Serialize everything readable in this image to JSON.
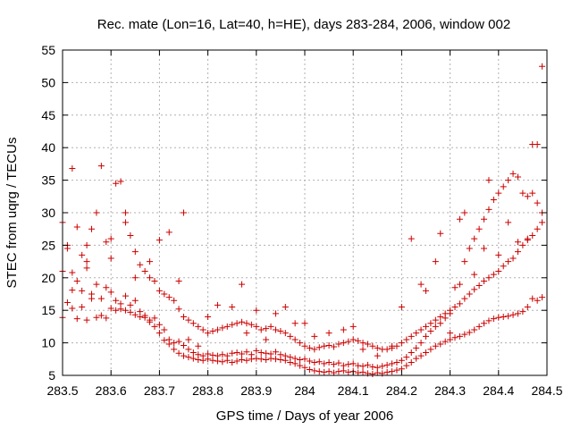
{
  "chart_data": {
    "type": "scatter",
    "title": "Rec. mate (Lon=16, Lat=40, h=HE), days 283-284, 2006, window 002",
    "xlabel": "GPS time / Days of year 2006",
    "ylabel": "STEC from uqrg / TECUs",
    "xlim": [
      283.5,
      284.5
    ],
    "ylim": [
      5,
      55
    ],
    "x_ticks": [
      283.5,
      283.6,
      283.7,
      283.8,
      283.9,
      284.0,
      284.1,
      284.2,
      284.3,
      284.4,
      284.5
    ],
    "x_tick_labels": [
      "283.5",
      "283.6",
      "283.7",
      "283.8",
      "283.9",
      "284",
      "284.1",
      "284.2",
      "284.3",
      "284.4",
      "284.5"
    ],
    "y_ticks": [
      5,
      10,
      15,
      20,
      25,
      30,
      35,
      40,
      45,
      50,
      55
    ],
    "y_tick_labels": [
      "5",
      "10",
      "15",
      "20",
      "25",
      "30",
      "35",
      "40",
      "45",
      "50",
      "55"
    ],
    "grid": true,
    "marker": "plus",
    "color": "#cc0000",
    "points": [
      [
        283.5,
        13.9
      ],
      [
        283.51,
        16.2
      ],
      [
        283.52,
        18.1
      ],
      [
        283.53,
        13.7
      ],
      [
        283.54,
        15.5
      ],
      [
        283.55,
        13.5
      ],
      [
        283.56,
        16.8
      ],
      [
        283.57,
        13.9
      ],
      [
        283.58,
        14.2
      ],
      [
        283.59,
        13.8
      ],
      [
        283.6,
        15.3
      ],
      [
        283.61,
        15.0
      ],
      [
        283.62,
        15.2
      ],
      [
        283.63,
        15.0
      ],
      [
        283.64,
        14.7
      ],
      [
        283.65,
        14.3
      ],
      [
        283.66,
        14.0
      ],
      [
        283.67,
        13.9
      ],
      [
        283.68,
        13.2
      ],
      [
        283.69,
        12.5
      ],
      [
        283.7,
        11.5
      ],
      [
        283.71,
        10.4
      ],
      [
        283.72,
        9.8
      ],
      [
        283.73,
        9.0
      ],
      [
        283.74,
        8.4
      ],
      [
        283.75,
        8.0
      ],
      [
        283.76,
        7.8
      ],
      [
        283.77,
        7.6
      ],
      [
        283.78,
        7.4
      ],
      [
        283.79,
        7.3
      ],
      [
        283.8,
        7.5
      ],
      [
        283.81,
        7.3
      ],
      [
        283.82,
        7.2
      ],
      [
        283.83,
        7.1
      ],
      [
        283.84,
        7.3
      ],
      [
        283.85,
        7.0
      ],
      [
        283.86,
        7.2
      ],
      [
        283.87,
        7.4
      ],
      [
        283.88,
        7.3
      ],
      [
        283.89,
        7.5
      ],
      [
        283.9,
        7.6
      ],
      [
        283.91,
        7.5
      ],
      [
        283.92,
        7.4
      ],
      [
        283.93,
        7.6
      ],
      [
        283.94,
        7.5
      ],
      [
        283.95,
        7.4
      ],
      [
        283.96,
        7.3
      ],
      [
        283.97,
        7.0
      ],
      [
        283.98,
        6.8
      ],
      [
        283.99,
        6.5
      ],
      [
        284.0,
        6.2
      ],
      [
        284.01,
        5.9
      ],
      [
        284.02,
        5.7
      ],
      [
        284.03,
        5.6
      ],
      [
        284.04,
        5.5
      ],
      [
        284.05,
        5.6
      ],
      [
        284.06,
        5.4
      ],
      [
        284.07,
        5.6
      ],
      [
        284.08,
        5.7
      ],
      [
        284.09,
        5.5
      ],
      [
        284.1,
        5.6
      ],
      [
        284.11,
        5.4
      ],
      [
        284.12,
        5.5
      ],
      [
        284.13,
        5.3
      ],
      [
        284.14,
        5.2
      ],
      [
        284.15,
        5.4
      ],
      [
        284.16,
        5.3
      ],
      [
        284.17,
        5.5
      ],
      [
        284.18,
        5.6
      ],
      [
        284.19,
        5.8
      ],
      [
        284.2,
        6.0
      ],
      [
        284.21,
        6.5
      ],
      [
        284.22,
        7.0
      ],
      [
        284.23,
        7.6
      ],
      [
        284.24,
        8.0
      ],
      [
        284.25,
        8.5
      ],
      [
        284.26,
        9.0
      ],
      [
        284.27,
        9.5
      ],
      [
        284.28,
        9.8
      ],
      [
        284.29,
        10.2
      ],
      [
        284.3,
        10.5
      ],
      [
        284.31,
        10.8
      ],
      [
        284.32,
        11.0
      ],
      [
        284.33,
        11.3
      ],
      [
        284.34,
        11.6
      ],
      [
        284.35,
        12.0
      ],
      [
        284.36,
        12.5
      ],
      [
        284.37,
        13.0
      ],
      [
        284.38,
        13.4
      ],
      [
        284.39,
        13.7
      ],
      [
        284.4,
        13.9
      ],
      [
        284.41,
        14.0
      ],
      [
        284.42,
        14.1
      ],
      [
        284.43,
        14.3
      ],
      [
        284.44,
        14.5
      ],
      [
        284.45,
        14.8
      ],
      [
        284.46,
        15.5
      ],
      [
        284.47,
        16.8
      ],
      [
        284.48,
        16.5
      ],
      [
        284.49,
        17.0
      ],
      [
        283.5,
        21.0
      ],
      [
        283.51,
        24.5
      ],
      [
        283.52,
        20.8
      ],
      [
        283.53,
        19.5
      ],
      [
        283.54,
        18.0
      ],
      [
        283.55,
        22.5
      ],
      [
        283.56,
        17.5
      ],
      [
        283.57,
        19.0
      ],
      [
        283.58,
        16.8
      ],
      [
        283.59,
        18.5
      ],
      [
        283.6,
        17.8
      ],
      [
        283.61,
        16.5
      ],
      [
        283.62,
        16.0
      ],
      [
        283.63,
        17.2
      ],
      [
        283.64,
        15.8
      ],
      [
        283.65,
        16.5
      ],
      [
        283.66,
        14.8
      ],
      [
        283.67,
        14.2
      ],
      [
        283.68,
        13.5
      ],
      [
        283.69,
        13.8
      ],
      [
        283.7,
        12.8
      ],
      [
        283.71,
        12.0
      ],
      [
        283.72,
        10.5
      ],
      [
        283.73,
        10.0
      ],
      [
        283.74,
        10.2
      ],
      [
        283.75,
        9.6
      ],
      [
        283.76,
        9.0
      ],
      [
        283.77,
        8.5
      ],
      [
        283.78,
        8.2
      ],
      [
        283.79,
        8.0
      ],
      [
        283.8,
        8.3
      ],
      [
        283.81,
        8.1
      ],
      [
        283.82,
        8.0
      ],
      [
        283.83,
        8.2
      ],
      [
        283.84,
        8.0
      ],
      [
        283.85,
        8.4
      ],
      [
        283.86,
        8.5
      ],
      [
        283.87,
        8.3
      ],
      [
        283.88,
        8.6
      ],
      [
        283.89,
        8.2
      ],
      [
        283.9,
        8.8
      ],
      [
        283.91,
        8.5
      ],
      [
        283.92,
        8.4
      ],
      [
        283.93,
        8.3
      ],
      [
        283.94,
        8.6
      ],
      [
        283.95,
        8.2
      ],
      [
        283.96,
        8.0
      ],
      [
        283.97,
        7.8
      ],
      [
        283.98,
        7.6
      ],
      [
        283.99,
        7.4
      ],
      [
        284.0,
        7.5
      ],
      [
        284.01,
        7.2
      ],
      [
        284.02,
        7.0
      ],
      [
        284.03,
        7.1
      ],
      [
        284.04,
        6.8
      ],
      [
        284.05,
        7.0
      ],
      [
        284.06,
        6.7
      ],
      [
        284.07,
        6.9
      ],
      [
        284.08,
        6.5
      ],
      [
        284.09,
        6.7
      ],
      [
        284.1,
        6.8
      ],
      [
        284.11,
        6.5
      ],
      [
        284.12,
        6.4
      ],
      [
        284.13,
        6.6
      ],
      [
        284.14,
        6.3
      ],
      [
        284.15,
        6.2
      ],
      [
        284.16,
        6.4
      ],
      [
        284.17,
        6.6
      ],
      [
        284.18,
        6.8
      ],
      [
        284.19,
        7.0
      ],
      [
        284.2,
        7.3
      ],
      [
        284.21,
        7.8
      ],
      [
        284.22,
        8.5
      ],
      [
        284.23,
        9.2
      ],
      [
        284.24,
        10.0
      ],
      [
        284.25,
        11.0
      ],
      [
        284.26,
        11.8
      ],
      [
        284.27,
        12.5
      ],
      [
        284.28,
        13.0
      ],
      [
        284.29,
        13.8
      ],
      [
        284.3,
        14.5
      ],
      [
        284.31,
        15.5
      ],
      [
        284.32,
        16.0
      ],
      [
        284.33,
        16.8
      ],
      [
        284.34,
        17.5
      ],
      [
        284.35,
        18.2
      ],
      [
        284.36,
        18.8
      ],
      [
        284.37,
        19.5
      ],
      [
        284.38,
        20.0
      ],
      [
        284.39,
        20.5
      ],
      [
        284.4,
        21.0
      ],
      [
        284.41,
        21.8
      ],
      [
        284.42,
        22.5
      ],
      [
        284.43,
        23.0
      ],
      [
        284.44,
        24.0
      ],
      [
        284.45,
        25.0
      ],
      [
        284.46,
        25.8
      ],
      [
        284.47,
        26.5
      ],
      [
        284.48,
        27.5
      ],
      [
        284.49,
        28.5
      ],
      [
        283.5,
        28.5
      ],
      [
        283.51,
        25.0
      ],
      [
        283.52,
        36.8
      ],
      [
        283.53,
        27.8
      ],
      [
        283.54,
        23.5
      ],
      [
        283.55,
        21.5
      ],
      [
        283.56,
        27.5
      ],
      [
        283.57,
        30.0
      ],
      [
        283.58,
        37.2
      ],
      [
        283.59,
        25.5
      ],
      [
        283.6,
        23.0
      ],
      [
        283.61,
        34.5
      ],
      [
        283.62,
        34.8
      ],
      [
        283.63,
        28.5
      ],
      [
        283.64,
        26.5
      ],
      [
        283.65,
        24.0
      ],
      [
        283.66,
        22.0
      ],
      [
        283.67,
        21.0
      ],
      [
        283.68,
        20.0
      ],
      [
        283.69,
        19.5
      ],
      [
        283.7,
        18.0
      ],
      [
        283.71,
        17.5
      ],
      [
        283.72,
        17.0
      ],
      [
        283.73,
        16.5
      ],
      [
        283.74,
        15.2
      ],
      [
        283.75,
        14.0
      ],
      [
        283.76,
        13.5
      ],
      [
        283.77,
        13.0
      ],
      [
        283.78,
        12.5
      ],
      [
        283.79,
        12.0
      ],
      [
        283.8,
        11.5
      ],
      [
        283.81,
        11.8
      ],
      [
        283.82,
        12.0
      ],
      [
        283.83,
        12.3
      ],
      [
        283.84,
        12.5
      ],
      [
        283.85,
        12.8
      ],
      [
        283.86,
        13.0
      ],
      [
        283.87,
        13.2
      ],
      [
        283.88,
        13.0
      ],
      [
        283.89,
        12.8
      ],
      [
        283.9,
        12.5
      ],
      [
        283.91,
        12.0
      ],
      [
        283.92,
        12.2
      ],
      [
        283.93,
        12.5
      ],
      [
        283.94,
        12.0
      ],
      [
        283.95,
        11.8
      ],
      [
        283.96,
        11.5
      ],
      [
        283.97,
        11.0
      ],
      [
        283.98,
        10.5
      ],
      [
        283.99,
        10.0
      ],
      [
        284.0,
        9.5
      ],
      [
        284.01,
        9.2
      ],
      [
        284.02,
        9.0
      ],
      [
        284.03,
        9.3
      ],
      [
        284.04,
        9.5
      ],
      [
        284.05,
        9.6
      ],
      [
        284.06,
        9.4
      ],
      [
        284.07,
        9.8
      ],
      [
        284.08,
        10.0
      ],
      [
        284.09,
        10.2
      ],
      [
        284.1,
        10.5
      ],
      [
        284.11,
        10.3
      ],
      [
        284.12,
        10.0
      ],
      [
        284.13,
        9.8
      ],
      [
        284.14,
        9.5
      ],
      [
        284.15,
        9.2
      ],
      [
        284.16,
        9.0
      ],
      [
        284.17,
        9.0
      ],
      [
        284.18,
        9.2
      ],
      [
        284.19,
        9.5
      ],
      [
        284.2,
        10.0
      ],
      [
        284.21,
        10.5
      ],
      [
        284.22,
        11.0
      ],
      [
        284.23,
        11.5
      ],
      [
        284.24,
        12.0
      ],
      [
        284.25,
        12.5
      ],
      [
        284.26,
        13.0
      ],
      [
        284.27,
        13.5
      ],
      [
        284.28,
        14.0
      ],
      [
        284.29,
        14.5
      ],
      [
        284.3,
        15.0
      ],
      [
        284.31,
        18.5
      ],
      [
        284.32,
        19.0
      ],
      [
        284.33,
        22.5
      ],
      [
        284.34,
        24.5
      ],
      [
        284.35,
        26.0
      ],
      [
        284.36,
        27.5
      ],
      [
        284.37,
        29.0
      ],
      [
        284.38,
        30.5
      ],
      [
        284.39,
        32.0
      ],
      [
        284.4,
        33.0
      ],
      [
        284.41,
        34.0
      ],
      [
        284.42,
        35.0
      ],
      [
        284.43,
        36.0
      ],
      [
        284.44,
        35.5
      ],
      [
        284.45,
        33.0
      ],
      [
        284.46,
        32.5
      ],
      [
        284.47,
        40.5
      ],
      [
        284.48,
        40.5
      ],
      [
        284.49,
        52.5
      ],
      [
        283.52,
        15.3
      ],
      [
        283.55,
        25.0
      ],
      [
        283.6,
        26.0
      ],
      [
        283.63,
        30.0
      ],
      [
        283.65,
        20.0
      ],
      [
        283.68,
        22.5
      ],
      [
        283.7,
        25.8
      ],
      [
        283.72,
        27.0
      ],
      [
        283.74,
        19.5
      ],
      [
        283.75,
        30.0
      ],
      [
        283.76,
        10.5
      ],
      [
        283.78,
        9.5
      ],
      [
        283.8,
        14.0
      ],
      [
        283.82,
        15.8
      ],
      [
        283.85,
        15.5
      ],
      [
        283.87,
        19.0
      ],
      [
        283.88,
        11.5
      ],
      [
        283.9,
        15.0
      ],
      [
        283.92,
        10.5
      ],
      [
        283.94,
        14.5
      ],
      [
        283.96,
        15.5
      ],
      [
        283.98,
        13.0
      ],
      [
        284.0,
        13.0
      ],
      [
        284.02,
        11.0
      ],
      [
        284.05,
        11.5
      ],
      [
        284.08,
        12.0
      ],
      [
        284.1,
        12.5
      ],
      [
        284.12,
        9.0
      ],
      [
        284.15,
        8.0
      ],
      [
        284.18,
        9.5
      ],
      [
        284.2,
        15.5
      ],
      [
        284.22,
        26.0
      ],
      [
        284.24,
        19.0
      ],
      [
        284.25,
        18.0
      ],
      [
        284.27,
        22.5
      ],
      [
        284.28,
        26.8
      ],
      [
        284.3,
        11.5
      ],
      [
        284.32,
        29.0
      ],
      [
        284.33,
        30.0
      ],
      [
        284.35,
        20.5
      ],
      [
        284.37,
        24.5
      ],
      [
        284.38,
        35.0
      ],
      [
        284.4,
        23.5
      ],
      [
        284.42,
        28.5
      ],
      [
        284.44,
        25.5
      ],
      [
        284.46,
        26.0
      ],
      [
        284.47,
        33.0
      ],
      [
        284.48,
        31.5
      ],
      [
        284.49,
        30.0
      ]
    ]
  }
}
